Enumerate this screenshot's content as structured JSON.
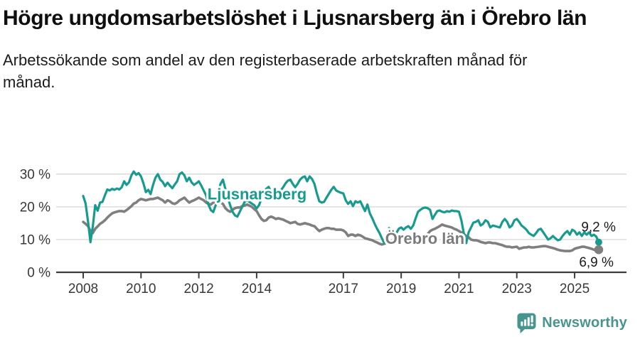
{
  "title": "Högre ungdomsarbetslöshet i Ljusnarsberg än i Örebro län",
  "subtitle": "Arbetssökande som andel av den registerbaserade arbetskraften månad för månad.",
  "branding": {
    "logo_text": "Newsworthy"
  },
  "colors": {
    "accent_teal": "#169B8E",
    "line_gray": "#7F7F7F",
    "gray_label": "#7B7B7B",
    "grid": "#D9D9D9",
    "axis": "#3D3D3D",
    "tick_text": "#383838",
    "value_text": "#1A1A1A",
    "logo_teal": "#47958F"
  },
  "chart_data": {
    "type": "line",
    "title": "Högre ungdomsarbetslöshet i Ljusnarsberg än i Örebro län",
    "subtitle": "Arbetssökande som andel av den registerbaserade arbetskraften månad för månad.",
    "x_unit": "month",
    "x_start_year": 2008,
    "x_end_approx": 2025.83,
    "x_ticks": [
      2008,
      2010,
      2012,
      2014,
      2017,
      2019,
      2021,
      2023,
      2025
    ],
    "x_tick_labels": [
      "2008",
      "2010",
      "2012",
      "2014",
      "2017",
      "2019",
      "2021",
      "2023",
      "2025"
    ],
    "y_ticks": [
      0,
      10,
      20,
      30
    ],
    "y_tick_labels": [
      "0 %",
      "10 %",
      "20 %",
      "30 %"
    ],
    "ylim": [
      0,
      32
    ],
    "grid": "horizontal",
    "legend_position": "inline-labels",
    "series": [
      {
        "name": "Ljusnarsberg",
        "color": "#169B8E",
        "end_label": "9,2 %",
        "end_value": 9.2,
        "name_label": {
          "x_year": 2012.3,
          "y_pct": 22.3
        },
        "values": [
          23.3,
          21.0,
          15.5,
          9.2,
          14.0,
          20.5,
          18.8,
          21.3,
          21.5,
          23.5,
          25.3,
          25.0,
          25.5,
          25.2,
          25.6,
          25.3,
          26.0,
          27.8,
          26.7,
          27.5,
          29.6,
          30.8,
          29.8,
          30.3,
          29.3,
          27.2,
          24.5,
          25.2,
          23.9,
          26.7,
          28.9,
          30.0,
          28.3,
          27.6,
          26.3,
          27.4,
          26.5,
          25.7,
          26.8,
          27.8,
          30.0,
          30.5,
          29.6,
          27.8,
          28.9,
          27.5,
          26.7,
          27.2,
          27.8,
          26.5,
          25.0,
          23.5,
          20.7,
          19.0,
          18.4,
          20.5,
          24.0,
          27.0,
          28.3,
          25.5,
          23.0,
          20.5,
          18.5,
          17.4,
          17.0,
          18.5,
          20.0,
          21.5,
          22.0,
          21.5,
          21.0,
          20.5,
          19.5,
          20.5,
          22.5,
          24.0,
          25.5,
          26.1,
          24.5,
          23.5,
          24.0,
          24.5,
          25.0,
          26.0,
          27.2,
          28.0,
          28.3,
          27.0,
          26.0,
          27.0,
          28.3,
          29.0,
          29.3,
          27.8,
          29.3,
          28.5,
          27.0,
          24.1,
          21.7,
          21.3,
          21.5,
          22.8,
          24.0,
          25.2,
          26.1,
          25.0,
          24.6,
          24.3,
          24.1,
          22.0,
          20.9,
          21.7,
          20.2,
          21.7,
          21.3,
          21.7,
          20.2,
          18.7,
          20.7,
          18.0,
          16.5,
          14.8,
          13.3,
          12.0,
          10.4,
          8.9,
          11.5,
          13.5,
          12.5,
          13.0,
          12.0,
          13.3,
          13.7,
          13.0,
          13.7,
          14.1,
          13.3,
          14.3,
          16.5,
          18.5,
          19.1,
          19.6,
          19.8,
          19.6,
          19.1,
          16.3,
          17.6,
          18.7,
          18.9,
          18.5,
          18.3,
          18.7,
          18.5,
          18.9,
          18.7,
          18.7,
          18.5,
          15.9,
          12.0,
          8.9,
          12.2,
          13.7,
          15.2,
          15.4,
          15.9,
          14.3,
          14.8,
          15.9,
          15.4,
          13.7,
          14.3,
          14.1,
          13.9,
          13.7,
          15.4,
          16.3,
          15.4,
          13.7,
          14.3,
          15.9,
          16.3,
          15.4,
          14.3,
          13.7,
          13.0,
          12.0,
          11.5,
          11.1,
          12.0,
          13.0,
          13.3,
          12.2,
          11.1,
          10.0,
          10.4,
          11.1,
          10.4,
          9.8,
          10.0,
          11.1,
          12.0,
          12.6,
          11.5,
          13.0,
          12.6,
          11.5,
          12.2,
          11.1,
          12.2,
          11.5,
          12.2,
          11.1,
          11.5,
          10.9,
          9.2
        ]
      },
      {
        "name": "Örebro län",
        "color": "#7F7F7F",
        "label_color": "#7B7B7B",
        "end_label": "6,9 %",
        "end_value": 6.9,
        "name_label": {
          "x_year": 2018.45,
          "y_pct": 8.7
        },
        "values": [
          15.4,
          14.8,
          14.1,
          12.6,
          12.0,
          13.3,
          14.0,
          14.8,
          15.3,
          15.9,
          16.7,
          17.4,
          18.0,
          18.3,
          18.5,
          18.7,
          18.7,
          18.5,
          19.0,
          19.6,
          20.2,
          21.0,
          21.3,
          22.0,
          22.4,
          22.2,
          22.0,
          22.2,
          22.4,
          22.4,
          22.6,
          22.8,
          22.4,
          22.0,
          21.3,
          22.0,
          21.7,
          21.1,
          20.9,
          21.3,
          22.0,
          22.4,
          22.8,
          22.0,
          21.3,
          21.7,
          22.0,
          22.4,
          22.8,
          22.4,
          22.0,
          21.3,
          20.9,
          20.7,
          21.3,
          21.5,
          21.7,
          21.3,
          20.9,
          19.6,
          18.9,
          18.5,
          19.1,
          19.6,
          19.8,
          19.8,
          20.2,
          20.4,
          20.7,
          20.4,
          20.0,
          19.3,
          18.7,
          17.4,
          16.3,
          15.7,
          15.9,
          16.7,
          17.0,
          16.7,
          16.3,
          16.5,
          16.3,
          16.1,
          15.7,
          15.4,
          15.0,
          15.2,
          15.4,
          14.8,
          14.6,
          14.8,
          15.0,
          14.8,
          14.6,
          14.3,
          14.1,
          13.3,
          12.6,
          13.0,
          13.3,
          13.5,
          13.5,
          13.3,
          13.3,
          13.0,
          13.0,
          13.0,
          12.8,
          12.2,
          11.1,
          11.5,
          11.5,
          11.1,
          11.5,
          11.3,
          10.9,
          10.4,
          10.2,
          10.0,
          9.8,
          9.4,
          9.1,
          8.7,
          8.5,
          8.7,
          9.1,
          9.4,
          9.6,
          9.8,
          9.6,
          9.6,
          9.8,
          9.6,
          9.8,
          10.0,
          9.8,
          10.0,
          10.2,
          10.4,
          10.7,
          10.9,
          11.1,
          11.7,
          12.6,
          13.0,
          13.3,
          13.7,
          14.1,
          14.6,
          14.3,
          14.1,
          13.9,
          13.7,
          13.3,
          13.0,
          12.6,
          12.2,
          11.7,
          11.1,
          10.7,
          10.0,
          9.8,
          9.8,
          9.6,
          9.3,
          9.1,
          8.9,
          9.1,
          9.1,
          8.9,
          8.9,
          8.7,
          8.5,
          8.3,
          8.0,
          7.8,
          7.8,
          7.6,
          7.7,
          7.8,
          7.2,
          7.4,
          7.6,
          7.6,
          7.8,
          7.6,
          7.6,
          7.7,
          7.8,
          7.9,
          8.0,
          8.0,
          7.8,
          7.6,
          7.4,
          7.2,
          6.9,
          6.7,
          6.6,
          6.5,
          6.5,
          6.5,
          6.7,
          7.2,
          7.4,
          7.6,
          7.8,
          7.8,
          7.6,
          7.4,
          7.2,
          6.9,
          6.7,
          6.9
        ]
      }
    ]
  }
}
